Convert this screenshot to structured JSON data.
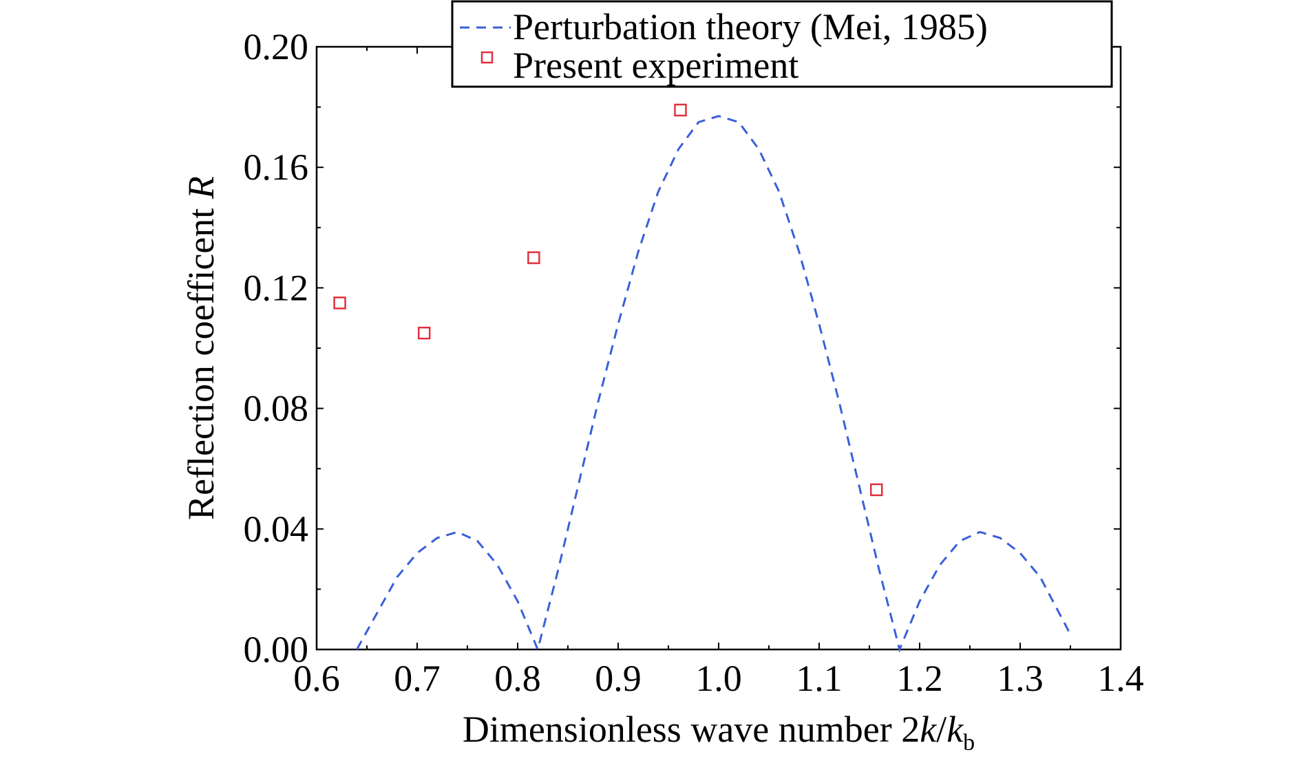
{
  "chart_data": {
    "type": "line",
    "xlabel": "Dimensionless wave number 2k/k",
    "xlabel_parts": {
      "prefix": "Dimensionless wave number 2",
      "k1": "k",
      "slash": "/",
      "k2": "k",
      "subscript": "b"
    },
    "ylabel": "Reflection coefficent R",
    "ylabel_parts": {
      "prefix": "Reflection coefficent ",
      "var": "R"
    },
    "xlim": [
      0.6,
      1.4
    ],
    "ylim": [
      0.0,
      0.2
    ],
    "xticks": [
      "0.6",
      "0.7",
      "0.8",
      "0.9",
      "1.0",
      "1.1",
      "1.2",
      "1.3",
      "1.4"
    ],
    "yticks": [
      "0.00",
      "0.04",
      "0.08",
      "0.12",
      "0.16",
      "0.20"
    ],
    "grid": false,
    "legend_position": "top-right",
    "series": [
      {
        "name": "Perturbation theory (Mei, 1985)",
        "style": "dashed-line",
        "color": "#3a5fd9",
        "x": [
          0.64,
          0.66,
          0.68,
          0.7,
          0.72,
          0.74,
          0.76,
          0.78,
          0.8,
          0.82,
          0.84,
          0.86,
          0.88,
          0.9,
          0.92,
          0.94,
          0.96,
          0.98,
          1.0,
          1.02,
          1.04,
          1.06,
          1.08,
          1.1,
          1.12,
          1.14,
          1.16,
          1.18,
          1.2,
          1.22,
          1.24,
          1.26,
          1.28,
          1.3,
          1.32,
          1.35
        ],
        "y": [
          0.0,
          0.012,
          0.024,
          0.032,
          0.037,
          0.039,
          0.036,
          0.028,
          0.016,
          0.0,
          0.026,
          0.054,
          0.082,
          0.108,
          0.132,
          0.152,
          0.166,
          0.175,
          0.177,
          0.175,
          0.166,
          0.152,
          0.132,
          0.108,
          0.082,
          0.054,
          0.026,
          0.0,
          0.016,
          0.028,
          0.036,
          0.039,
          0.037,
          0.032,
          0.024,
          0.005
        ]
      },
      {
        "name": "Present experiment",
        "style": "square-markers",
        "color": "#e0303c",
        "x": [
          0.623,
          0.707,
          0.816,
          0.962,
          1.157
        ],
        "y": [
          0.115,
          0.105,
          0.13,
          0.179,
          0.053
        ]
      }
    ]
  }
}
